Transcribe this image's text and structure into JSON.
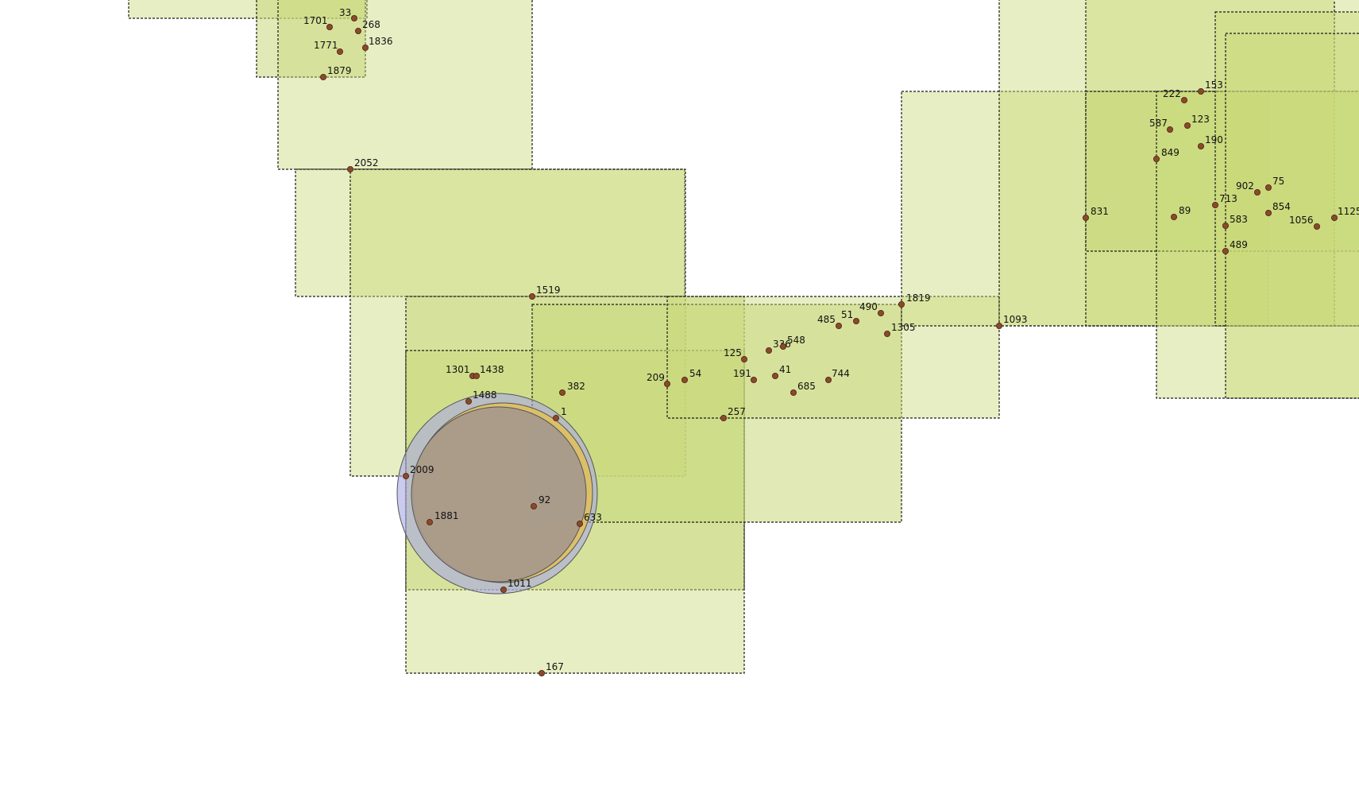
{
  "map": {
    "colors": {
      "background": "#ffffff",
      "region_fill": "#c9d97a",
      "region_stroke": "#1a1a1a",
      "point_fill": "#8b4a2b",
      "point_stroke": "#4a2515",
      "circle_blue_fill": "#a9a9e6",
      "circle_yellow_fill": "#e2c05a",
      "circle_inner_fill": "#a89a8c"
    },
    "points": [
      {
        "label": "33"
      },
      {
        "label": "1701"
      },
      {
        "label": "268"
      },
      {
        "label": "1771"
      },
      {
        "label": "1836"
      },
      {
        "label": "1879"
      },
      {
        "label": "2052"
      },
      {
        "label": "1519"
      },
      {
        "label": "1301"
      },
      {
        "label": "1438"
      },
      {
        "label": "382"
      },
      {
        "label": "1488"
      },
      {
        "label": "1"
      },
      {
        "label": "2009"
      },
      {
        "label": "92"
      },
      {
        "label": "1881"
      },
      {
        "label": "633"
      },
      {
        "label": "1011"
      },
      {
        "label": "167"
      },
      {
        "label": "209"
      },
      {
        "label": "54"
      },
      {
        "label": "257"
      },
      {
        "label": "125"
      },
      {
        "label": "336"
      },
      {
        "label": "548"
      },
      {
        "label": "191"
      },
      {
        "label": "41"
      },
      {
        "label": "685"
      },
      {
        "label": "744"
      },
      {
        "label": "485"
      },
      {
        "label": "51"
      },
      {
        "label": "490"
      },
      {
        "label": "1305"
      },
      {
        "label": "1819"
      },
      {
        "label": "1093"
      },
      {
        "label": "831"
      },
      {
        "label": "222"
      },
      {
        "label": "153"
      },
      {
        "label": "587"
      },
      {
        "label": "123"
      },
      {
        "label": "190"
      },
      {
        "label": "849"
      },
      {
        "label": "902"
      },
      {
        "label": "75"
      },
      {
        "label": "713"
      },
      {
        "label": "89"
      },
      {
        "label": "854"
      },
      {
        "label": "1125"
      },
      {
        "label": "1056"
      },
      {
        "label": "583"
      },
      {
        "label": "489"
      }
    ]
  }
}
